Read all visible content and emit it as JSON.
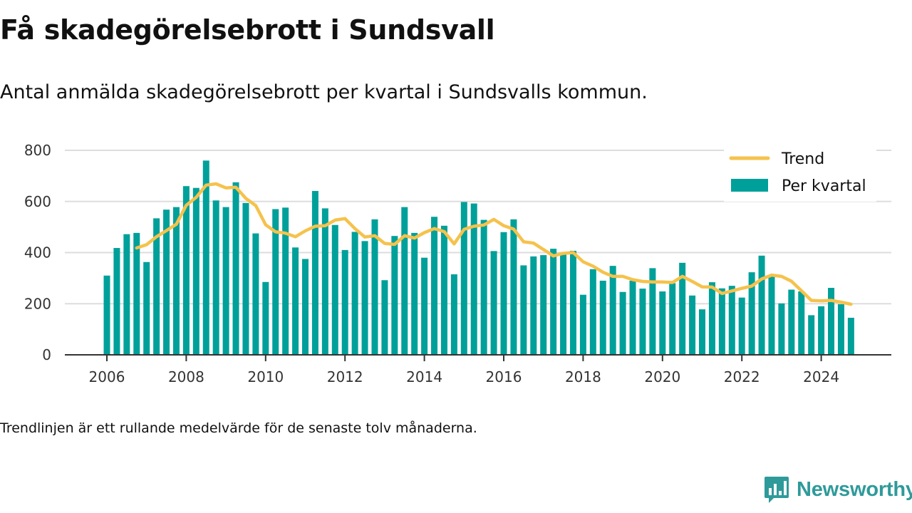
{
  "header": {
    "title": "Få skadegörelsebrott i Sundsvall",
    "subtitle": "Antal anmälda skadegörelsebrott per kvartal i Sundsvalls kommun."
  },
  "footer": {
    "note": "Trendlinjen är ett rullande medelvärde för de senaste tolv månaderna.",
    "brand": "Newsworthy"
  },
  "colors": {
    "bars": "#00a09a",
    "trend": "#f5c24c",
    "grid": "#dddddd",
    "axis": "#333333",
    "brand": "#2f9a9a"
  },
  "icons": {
    "brand_logo": "bar-chart-speech-bubble-icon"
  },
  "chart_data": {
    "type": "bar",
    "x_start": 2006,
    "x_step_years": 0.25,
    "x_ticks": [
      2006,
      2008,
      2010,
      2012,
      2014,
      2016,
      2018,
      2020,
      2022,
      2024
    ],
    "ylim": [
      0,
      800
    ],
    "y_ticks": [
      0,
      200,
      400,
      600,
      800
    ],
    "grid": true,
    "legend_position": "top-right",
    "series": [
      {
        "name": "Per kvartal",
        "type": "bar",
        "values": [
          310,
          418,
          472,
          477,
          363,
          534,
          568,
          578,
          660,
          653,
          760,
          604,
          578,
          675,
          594,
          475,
          285,
          570,
          576,
          420,
          375,
          641,
          573,
          508,
          410,
          481,
          445,
          530,
          292,
          465,
          578,
          477,
          380,
          540,
          505,
          315,
          598,
          592,
          528,
          406,
          480,
          530,
          350,
          385,
          390,
          415,
          392,
          407,
          235,
          335,
          290,
          348,
          246,
          290,
          259,
          339,
          248,
          280,
          360,
          232,
          178,
          284,
          260,
          270,
          224,
          323,
          388,
          311,
          201,
          255,
          248,
          155,
          190,
          262,
          198,
          145
        ]
      },
      {
        "name": "Trend",
        "type": "line",
        "values": [
          null,
          null,
          null,
          418,
          431,
          462,
          486,
          511,
          585,
          616,
          664,
          669,
          653,
          656,
          612,
          584,
          509,
          481,
          476,
          462,
          485,
          503,
          505,
          527,
          533,
          494,
          461,
          466,
          436,
          432,
          466,
          457,
          478,
          494,
          482,
          434,
          491,
          503,
          508,
          530,
          505,
          492,
          442,
          437,
          412,
          387,
          397,
          400,
          364,
          347,
          323,
          307,
          307,
          294,
          287,
          285,
          285,
          283,
          307,
          287,
          266,
          265,
          240,
          250,
          260,
          269,
          297,
          312,
          307,
          288,
          251,
          213,
          211,
          213,
          206,
          198
        ]
      }
    ]
  }
}
